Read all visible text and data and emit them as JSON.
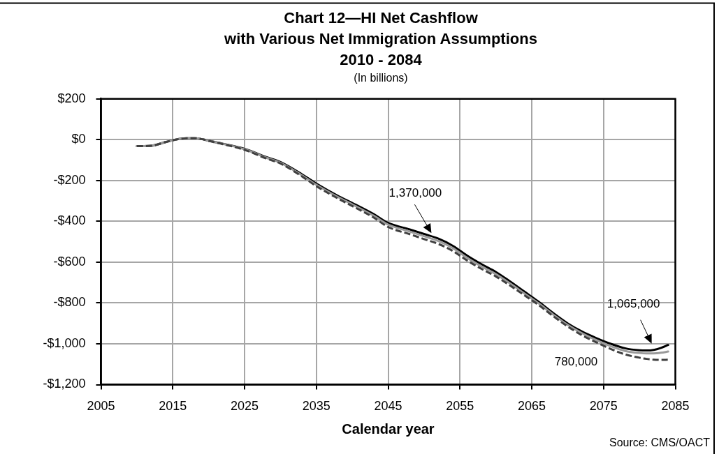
{
  "chart_data": {
    "type": "line",
    "title": "Chart 12—HI Net Cashflow\nwith Various Net Immigration Assumptions\n2010 - 2084",
    "subtitle": "(In billions)",
    "xlabel": "Calendar year",
    "annotations": [
      "Source: CMS/OACT"
    ],
    "x": [
      2010,
      2012,
      2014,
      2015,
      2016,
      2017,
      2018,
      2019,
      2020,
      2022,
      2025,
      2028,
      2030,
      2033,
      2035,
      2038,
      2040,
      2043,
      2045,
      2048,
      2050,
      2052,
      2054,
      2056,
      2058,
      2060,
      2062,
      2064,
      2066,
      2068,
      2070,
      2072,
      2074,
      2076,
      2078,
      2080,
      2081,
      2082,
      2083,
      2084
    ],
    "series": [
      {
        "name": "1,370,000",
        "color": "#000000",
        "values": [
          -32,
          -30,
          -12,
          -3,
          4,
          7,
          7,
          3,
          -5,
          -20,
          -45,
          -85,
          -110,
          -170,
          -215,
          -275,
          -310,
          -365,
          -408,
          -440,
          -462,
          -485,
          -520,
          -568,
          -610,
          -648,
          -695,
          -745,
          -795,
          -850,
          -900,
          -940,
          -972,
          -1000,
          -1022,
          -1032,
          -1033,
          -1030,
          -1020,
          -1006
        ]
      },
      {
        "name": "1,065,000",
        "color": "#9a9a9a",
        "values": [
          -32,
          -30,
          -12,
          -3,
          4,
          7,
          7,
          3,
          -5,
          -21,
          -47,
          -88,
          -113,
          -175,
          -221,
          -281,
          -317,
          -373,
          -416,
          -450,
          -473,
          -497,
          -531,
          -579,
          -621,
          -659,
          -705,
          -754,
          -803,
          -857,
          -907,
          -948,
          -982,
          -1012,
          -1035,
          -1045,
          -1047,
          -1047,
          -1044,
          -1038
        ]
      },
      {
        "name": "780,000",
        "color": "#404040",
        "line_style": "dashed",
        "values": [
          -32,
          -30,
          -12,
          -3,
          4,
          7,
          7,
          3,
          -6,
          -22,
          -50,
          -92,
          -117,
          -180,
          -228,
          -288,
          -325,
          -382,
          -428,
          -463,
          -487,
          -511,
          -545,
          -592,
          -633,
          -670,
          -715,
          -763,
          -811,
          -865,
          -915,
          -958,
          -993,
          -1025,
          -1052,
          -1068,
          -1074,
          -1078,
          -1079,
          -1078
        ]
      }
    ],
    "xlim": [
      2005,
      2085
    ],
    "xticks": [
      2005,
      2015,
      2025,
      2035,
      2045,
      2055,
      2065,
      2075,
      2085
    ],
    "ylim": [
      -1200,
      200
    ],
    "yticks": [
      {
        "value": 200,
        "label": "$200"
      },
      {
        "value": 0,
        "label": "$0"
      },
      {
        "value": -200,
        "label": "-$200"
      },
      {
        "value": -400,
        "label": "-$400"
      },
      {
        "value": -600,
        "label": "-$600"
      },
      {
        "value": -800,
        "label": "-$800"
      },
      {
        "value": -1000,
        "label": "-$1,000"
      },
      {
        "value": -1200,
        "label": "-$1,200"
      }
    ],
    "grid": true,
    "legend": false,
    "marker": "none",
    "line_style": "solid"
  }
}
